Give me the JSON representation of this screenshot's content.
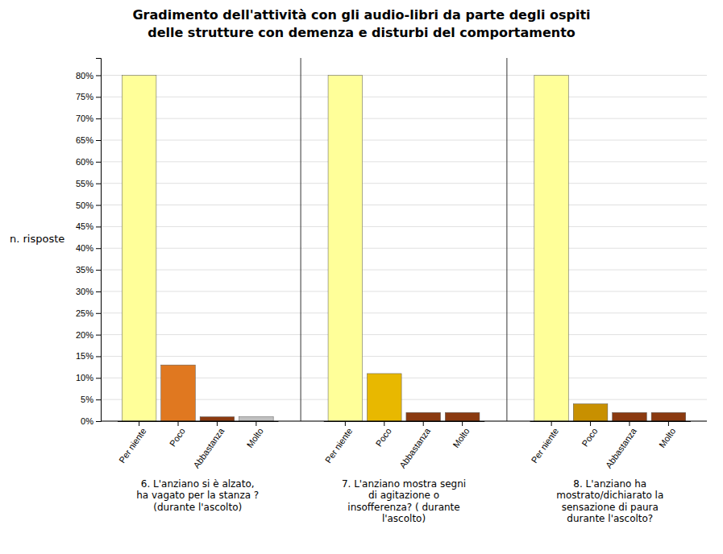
{
  "chart_data": {
    "type": "bar",
    "title": "Gradimento dell'attività con gli audio-libri da parte degli ospiti",
    "subtitle": "delle strutture con demenza e disturbi del comportamento",
    "ylabel": "n. risposte",
    "ylim": [
      0,
      84
    ],
    "yticks": [
      {
        "value": 0,
        "label": "0%"
      },
      {
        "value": 5,
        "label": "5%"
      },
      {
        "value": 10,
        "label": "10%"
      },
      {
        "value": 15,
        "label": "15%"
      },
      {
        "value": 20,
        "label": "20%"
      },
      {
        "value": 25,
        "label": "25%"
      },
      {
        "value": 30,
        "label": "30%"
      },
      {
        "value": 35,
        "label": "35%"
      },
      {
        "value": 40,
        "label": "40%"
      },
      {
        "value": 45,
        "label": "45%"
      },
      {
        "value": 50,
        "label": "50%"
      },
      {
        "value": 55,
        "label": "55%"
      },
      {
        "value": 60,
        "label": "60%"
      },
      {
        "value": 65,
        "label": "65%"
      },
      {
        "value": 70,
        "label": "70%"
      },
      {
        "value": 75,
        "label": "75%"
      },
      {
        "value": 80,
        "label": "80%"
      }
    ],
    "grid": true,
    "groups": [
      {
        "label": "6. L'anziano si è alzato,\nha vagato per la stanza ?\n(durante l'ascolto)",
        "categories": [
          "Per niente",
          "Poco",
          "Abbastanza",
          "Molto"
        ],
        "values": [
          80,
          13,
          1,
          1
        ],
        "colors": [
          "#FFFF99",
          "#E07820",
          "#8B3A10",
          "#C0C0C0"
        ]
      },
      {
        "label": "7. L'anziano mostra segni\ndi agitazione o\ninsofferenza? ( durante\nl'ascolto)",
        "categories": [
          "Per niente",
          "Poco",
          "Abbastanza",
          "Molto"
        ],
        "values": [
          80,
          11,
          2,
          2
        ],
        "colors": [
          "#FFFF99",
          "#E8B800",
          "#8B3A10",
          "#8B3A10"
        ]
      },
      {
        "label": "8. L'anziano ha\nmostrato/dichiarato la\nsensazione di paura\ndurante l'ascolto?",
        "categories": [
          "Per niente",
          "Poco",
          "Abbastanza",
          "Molto"
        ],
        "values": [
          80,
          4,
          2,
          2
        ],
        "colors": [
          "#FFFF99",
          "#C89000",
          "#8B3A10",
          "#8B3A10"
        ]
      }
    ]
  }
}
